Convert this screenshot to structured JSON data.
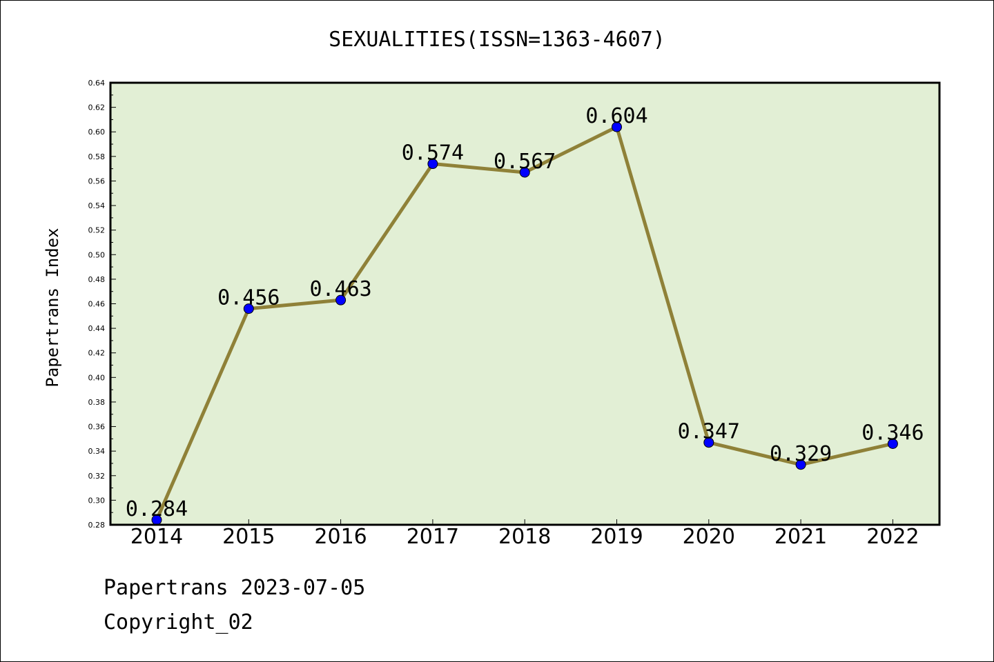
{
  "chart_data": {
    "type": "line",
    "title": "SEXUALITIES(ISSN=1363-4607)",
    "xlabel": "",
    "ylabel": "Papertrans Index",
    "categories": [
      "2014",
      "2015",
      "2016",
      "2017",
      "2018",
      "2019",
      "2020",
      "2021",
      "2022"
    ],
    "values": [
      0.284,
      0.456,
      0.463,
      0.574,
      0.567,
      0.604,
      0.347,
      0.329,
      0.346
    ],
    "data_labels": [
      "0.284",
      "0.456",
      "0.463",
      "0.574",
      "0.567",
      "0.604",
      "0.347",
      "0.329",
      "0.346"
    ],
    "ylim": [
      0.28,
      0.64
    ],
    "yticks": [
      "0.28",
      "0.30",
      "0.32",
      "0.34",
      "0.36",
      "0.38",
      "0.40",
      "0.42",
      "0.44",
      "0.46",
      "0.48",
      "0.50",
      "0.52",
      "0.54",
      "0.56",
      "0.58",
      "0.60",
      "0.62",
      "0.64"
    ],
    "grid": false,
    "colors": {
      "plot_background": "#e2efd5",
      "line": "#8f8138",
      "marker": "#0000ff"
    }
  },
  "footer": {
    "line1": "Papertrans 2023-07-05",
    "line2": "Copyright_02"
  }
}
